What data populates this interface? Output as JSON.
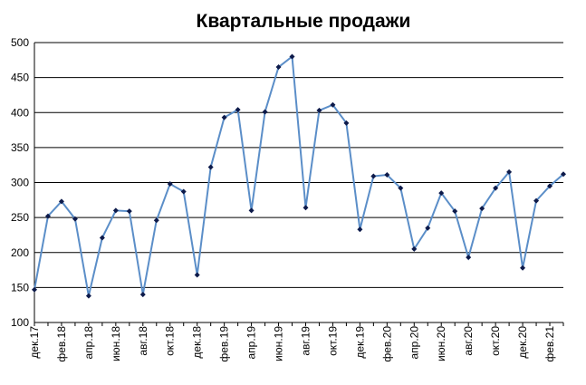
{
  "chart_data": {
    "type": "line",
    "title": "Квартальные продажи",
    "categories": [
      "дек.17",
      null,
      "фев.18",
      null,
      "апр.18",
      null,
      "июн.18",
      null,
      "авг.18",
      null,
      "окт.18",
      null,
      "дек.18",
      null,
      "фев.19",
      null,
      "апр.19",
      null,
      "июн.19",
      null,
      "авг.19",
      null,
      "окт.19",
      null,
      "дек.19",
      null,
      "фев.20",
      null,
      "апр.20",
      null,
      "июн.20",
      null,
      "авг.20",
      null,
      "окт.20",
      null,
      "дек.20",
      null,
      "фев.21",
      null
    ],
    "series": [
      {
        "color": "#5b8ec8",
        "marker_color": "#0d1a4a",
        "values": [
          147,
          252,
          273,
          248,
          138,
          221,
          260,
          259,
          140,
          246,
          298,
          287,
          168,
          322,
          393,
          404,
          260,
          401,
          465,
          480,
          264,
          403,
          411,
          385,
          233,
          309,
          311,
          292,
          205,
          235,
          285,
          259,
          193,
          263,
          292,
          315,
          178,
          274,
          295,
          312
        ]
      }
    ],
    "ylim": [
      100,
      500
    ],
    "yticks": [
      100,
      150,
      200,
      250,
      300,
      350,
      400,
      450,
      500
    ],
    "grid": true
  }
}
